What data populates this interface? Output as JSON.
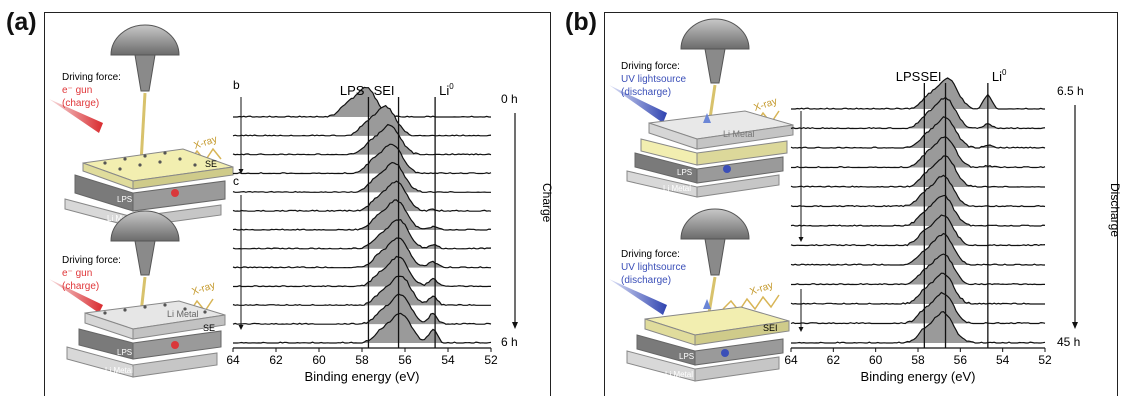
{
  "panel_a": {
    "label": "(a)",
    "top_device": {
      "driving_force": "Driving force:",
      "source": "e⁻ gun",
      "mode": "(charge)",
      "xray": "X-ray",
      "surface_label": "SE",
      "layer_lps": "LPS",
      "layer_li": "Li Metal"
    },
    "bottom_device": {
      "driving_force": "Driving force:",
      "source": "e⁻ gun",
      "mode": "(charge)",
      "xray": "X-ray",
      "surface_label": "SE",
      "layer_top": "Li Metal",
      "layer_lps": "LPS",
      "layer_li": "Li Metal"
    },
    "side_label": "Charge",
    "marker_b": "b",
    "marker_c": "c"
  },
  "panel_b": {
    "label": "(b)",
    "top_device": {
      "driving_force": "Driving force:",
      "source": "UV lightsource",
      "mode": "(discharge)",
      "xray": "X-ray",
      "layer_top": "Li Metal",
      "layer_lps": "LPS",
      "layer_li": "Li Metal"
    },
    "bottom_device": {
      "driving_force": "Driving force:",
      "source": "UV lightsource",
      "mode": "(discharge)",
      "xray": "X-ray",
      "surface_label": "SEI",
      "layer_lps": "LPS",
      "layer_li": "Li Metal"
    },
    "side_label": "Discharge"
  },
  "colors": {
    "charge_arrow": "#e0373a",
    "uv_arrow": "#3b4fb8",
    "spectrum_fill": "#9a9a9a",
    "se_layer": "#f2eeb0",
    "lps_layer": "#8d8d8d",
    "li_layer": "#d2d2d2"
  },
  "chart_data": [
    {
      "type": "line",
      "panel": "a",
      "title": "",
      "xlabel": "Binding energy (eV)",
      "ylabel": "",
      "xlim": [
        64,
        52
      ],
      "x_reversed": true,
      "xticks": [
        "64",
        "62",
        "60",
        "58",
        "56",
        "54",
        "52"
      ],
      "reference_lines": [
        {
          "label": "LPS",
          "x": 57.7
        },
        {
          "label": "SEI",
          "x": 56.3
        },
        {
          "label": "Li",
          "label_sup": "0",
          "x": 54.6
        }
      ],
      "time_start": "0 h",
      "time_end": "6 h",
      "series_count": 13,
      "peak_centers_eV": [
        57.8,
        56.9,
        56.7,
        56.6,
        56.5,
        56.4,
        56.4,
        56.3,
        56.3,
        56.3,
        56.2,
        56.2,
        56.2
      ],
      "li0_shoulder": [
        0.0,
        0.0,
        0.0,
        0.0,
        0.0,
        0.05,
        0.1,
        0.15,
        0.2,
        0.25,
        0.3,
        0.35,
        0.45
      ]
    },
    {
      "type": "line",
      "panel": "b",
      "title": "",
      "xlabel": "Binding energy (eV)",
      "ylabel": "",
      "xlim": [
        64,
        52
      ],
      "x_reversed": true,
      "xticks": [
        "64",
        "62",
        "60",
        "58",
        "56",
        "54",
        "52"
      ],
      "reference_lines": [
        {
          "label": "LPS",
          "x": 57.7
        },
        {
          "label": "SEI",
          "x": 56.7
        },
        {
          "label": "Li",
          "label_sup": "0",
          "x": 54.7
        }
      ],
      "time_start": "6.5 h",
      "time_end": "45 h",
      "series_count": 13,
      "peak_centers_eV": [
        56.6,
        56.7,
        56.7,
        56.7,
        56.7,
        56.8,
        56.8,
        56.8,
        56.8,
        56.8,
        56.8,
        56.8,
        56.8
      ],
      "li0_shoulder": [
        0.45,
        0.15,
        0.1,
        0.05,
        0.0,
        0.0,
        0.0,
        0.0,
        0.0,
        0.0,
        0.0,
        0.0,
        0.0
      ]
    }
  ]
}
